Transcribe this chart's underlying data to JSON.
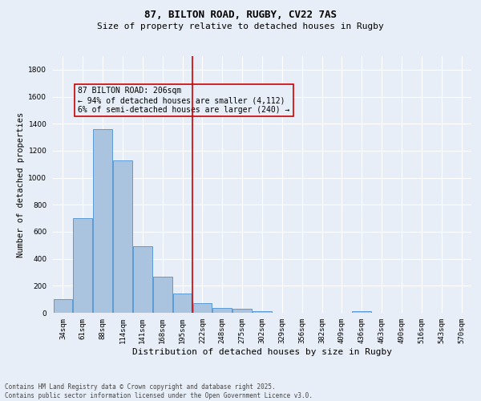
{
  "title1": "87, BILTON ROAD, RUGBY, CV22 7AS",
  "title2": "Size of property relative to detached houses in Rugby",
  "xlabel": "Distribution of detached houses by size in Rugby",
  "ylabel": "Number of detached properties",
  "categories": [
    "34sqm",
    "61sqm",
    "88sqm",
    "114sqm",
    "141sqm",
    "168sqm",
    "195sqm",
    "222sqm",
    "248sqm",
    "275sqm",
    "302sqm",
    "329sqm",
    "356sqm",
    "382sqm",
    "409sqm",
    "436sqm",
    "463sqm",
    "490sqm",
    "516sqm",
    "543sqm",
    "570sqm"
  ],
  "values": [
    100,
    700,
    1360,
    1130,
    490,
    270,
    140,
    70,
    38,
    32,
    10,
    0,
    0,
    0,
    0,
    12,
    0,
    0,
    0,
    0,
    0
  ],
  "bar_color": "#aac4e0",
  "bar_edge_color": "#5b9bd5",
  "background_color": "#e8eef7",
  "grid_color": "#ffffff",
  "vline_color": "#cc0000",
  "annotation_text": "87 BILTON ROAD: 206sqm\n← 94% of detached houses are smaller (4,112)\n6% of semi-detached houses are larger (240) →",
  "annotation_box_color": "#cc0000",
  "ylim": [
    0,
    1900
  ],
  "yticks": [
    0,
    200,
    400,
    600,
    800,
    1000,
    1200,
    1400,
    1600,
    1800
  ],
  "footer1": "Contains HM Land Registry data © Crown copyright and database right 2025.",
  "footer2": "Contains public sector information licensed under the Open Government Licence v3.0.",
  "title1_fontsize": 9,
  "title2_fontsize": 8,
  "xlabel_fontsize": 8,
  "ylabel_fontsize": 7.5,
  "tick_fontsize": 6.5,
  "annotation_fontsize": 7,
  "footer_fontsize": 5.5
}
